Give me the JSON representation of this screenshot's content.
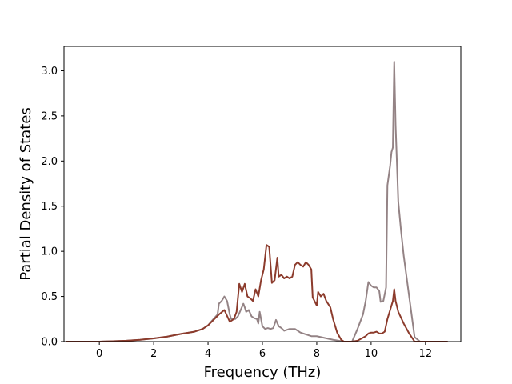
{
  "chart_data": {
    "type": "line",
    "title": "",
    "xlabel": "Frequency (THz)",
    "ylabel": "Partial Density of States",
    "xlim": [
      -1.3,
      13.3
    ],
    "ylim": [
      0.0,
      3.27
    ],
    "xticks": [
      0,
      2,
      4,
      6,
      8,
      10,
      12
    ],
    "xtick_labels": [
      "0",
      "2",
      "4",
      "6",
      "8",
      "10",
      "12"
    ],
    "yticks": [
      0.0,
      0.5,
      1.0,
      1.5,
      2.0,
      2.5,
      3.0
    ],
    "ytick_labels": [
      "0.0",
      "0.5",
      "1.0",
      "1.5",
      "2.0",
      "2.5",
      "3.0"
    ],
    "grid": false,
    "legend": "none",
    "series": [
      {
        "color": "#948385",
        "points": [
          [
            -1.2,
            0.0
          ],
          [
            0.0,
            0.0
          ],
          [
            0.5,
            0.005
          ],
          [
            1.0,
            0.01
          ],
          [
            1.5,
            0.02
          ],
          [
            2.0,
            0.035
          ],
          [
            2.5,
            0.055
          ],
          [
            3.0,
            0.085
          ],
          [
            3.5,
            0.11
          ],
          [
            3.8,
            0.14
          ],
          [
            4.0,
            0.18
          ],
          [
            4.2,
            0.25
          ],
          [
            4.35,
            0.3
          ],
          [
            4.4,
            0.42
          ],
          [
            4.5,
            0.45
          ],
          [
            4.6,
            0.5
          ],
          [
            4.7,
            0.45
          ],
          [
            4.8,
            0.3
          ],
          [
            4.85,
            0.25
          ],
          [
            5.0,
            0.25
          ],
          [
            5.1,
            0.28
          ],
          [
            5.2,
            0.35
          ],
          [
            5.3,
            0.42
          ],
          [
            5.35,
            0.38
          ],
          [
            5.4,
            0.33
          ],
          [
            5.5,
            0.35
          ],
          [
            5.6,
            0.28
          ],
          [
            5.7,
            0.26
          ],
          [
            5.8,
            0.25
          ],
          [
            5.85,
            0.2
          ],
          [
            5.9,
            0.33
          ],
          [
            6.0,
            0.17
          ],
          [
            6.1,
            0.14
          ],
          [
            6.2,
            0.15
          ],
          [
            6.3,
            0.14
          ],
          [
            6.4,
            0.15
          ],
          [
            6.5,
            0.24
          ],
          [
            6.6,
            0.17
          ],
          [
            6.7,
            0.15
          ],
          [
            6.8,
            0.12
          ],
          [
            7.0,
            0.14
          ],
          [
            7.2,
            0.14
          ],
          [
            7.4,
            0.1
          ],
          [
            7.6,
            0.08
          ],
          [
            7.8,
            0.06
          ],
          [
            8.0,
            0.06
          ],
          [
            8.3,
            0.04
          ],
          [
            8.6,
            0.02
          ],
          [
            9.0,
            0.0
          ],
          [
            9.3,
            0.0
          ],
          [
            9.5,
            0.14
          ],
          [
            9.7,
            0.3
          ],
          [
            9.8,
            0.45
          ],
          [
            9.9,
            0.66
          ],
          [
            10.0,
            0.62
          ],
          [
            10.1,
            0.6
          ],
          [
            10.2,
            0.6
          ],
          [
            10.3,
            0.56
          ],
          [
            10.35,
            0.44
          ],
          [
            10.45,
            0.45
          ],
          [
            10.55,
            0.6
          ],
          [
            10.6,
            1.73
          ],
          [
            10.7,
            1.95
          ],
          [
            10.75,
            2.1
          ],
          [
            10.8,
            2.15
          ],
          [
            10.85,
            3.1
          ],
          [
            10.9,
            2.4
          ],
          [
            11.0,
            1.55
          ],
          [
            11.1,
            1.23
          ],
          [
            11.2,
            0.95
          ],
          [
            11.4,
            0.5
          ],
          [
            11.6,
            0.05
          ],
          [
            11.8,
            0.0
          ],
          [
            12.8,
            0.0
          ]
        ]
      },
      {
        "color": "#8c3b2c",
        "points": [
          [
            -1.2,
            0.0
          ],
          [
            0.0,
            0.0
          ],
          [
            0.5,
            0.005
          ],
          [
            1.0,
            0.01
          ],
          [
            1.5,
            0.02
          ],
          [
            2.0,
            0.035
          ],
          [
            2.5,
            0.055
          ],
          [
            3.0,
            0.085
          ],
          [
            3.5,
            0.11
          ],
          [
            3.8,
            0.14
          ],
          [
            4.0,
            0.18
          ],
          [
            4.2,
            0.24
          ],
          [
            4.4,
            0.3
          ],
          [
            4.6,
            0.35
          ],
          [
            4.8,
            0.22
          ],
          [
            4.95,
            0.25
          ],
          [
            5.05,
            0.33
          ],
          [
            5.15,
            0.64
          ],
          [
            5.25,
            0.55
          ],
          [
            5.35,
            0.64
          ],
          [
            5.45,
            0.5
          ],
          [
            5.55,
            0.48
          ],
          [
            5.65,
            0.45
          ],
          [
            5.75,
            0.58
          ],
          [
            5.85,
            0.5
          ],
          [
            5.95,
            0.68
          ],
          [
            6.05,
            0.8
          ],
          [
            6.15,
            1.07
          ],
          [
            6.25,
            1.05
          ],
          [
            6.3,
            0.85
          ],
          [
            6.35,
            0.65
          ],
          [
            6.45,
            0.68
          ],
          [
            6.55,
            0.93
          ],
          [
            6.6,
            0.72
          ],
          [
            6.7,
            0.74
          ],
          [
            6.8,
            0.7
          ],
          [
            6.9,
            0.72
          ],
          [
            7.0,
            0.7
          ],
          [
            7.1,
            0.72
          ],
          [
            7.2,
            0.85
          ],
          [
            7.3,
            0.88
          ],
          [
            7.4,
            0.85
          ],
          [
            7.5,
            0.83
          ],
          [
            7.6,
            0.88
          ],
          [
            7.7,
            0.85
          ],
          [
            7.8,
            0.8
          ],
          [
            7.85,
            0.49
          ],
          [
            8.0,
            0.4
          ],
          [
            8.05,
            0.55
          ],
          [
            8.15,
            0.5
          ],
          [
            8.25,
            0.53
          ],
          [
            8.35,
            0.45
          ],
          [
            8.5,
            0.38
          ],
          [
            8.6,
            0.25
          ],
          [
            8.75,
            0.1
          ],
          [
            8.9,
            0.02
          ],
          [
            9.0,
            0.0
          ],
          [
            9.3,
            0.0
          ],
          [
            9.5,
            0.01
          ],
          [
            9.8,
            0.06
          ],
          [
            9.9,
            0.09
          ],
          [
            10.0,
            0.1
          ],
          [
            10.1,
            0.1
          ],
          [
            10.2,
            0.11
          ],
          [
            10.3,
            0.09
          ],
          [
            10.4,
            0.09
          ],
          [
            10.5,
            0.11
          ],
          [
            10.6,
            0.25
          ],
          [
            10.7,
            0.35
          ],
          [
            10.8,
            0.45
          ],
          [
            10.85,
            0.58
          ],
          [
            10.9,
            0.45
          ],
          [
            11.0,
            0.33
          ],
          [
            11.2,
            0.2
          ],
          [
            11.4,
            0.09
          ],
          [
            11.6,
            0.0
          ],
          [
            11.8,
            0.0
          ],
          [
            12.8,
            0.0
          ]
        ]
      }
    ]
  }
}
